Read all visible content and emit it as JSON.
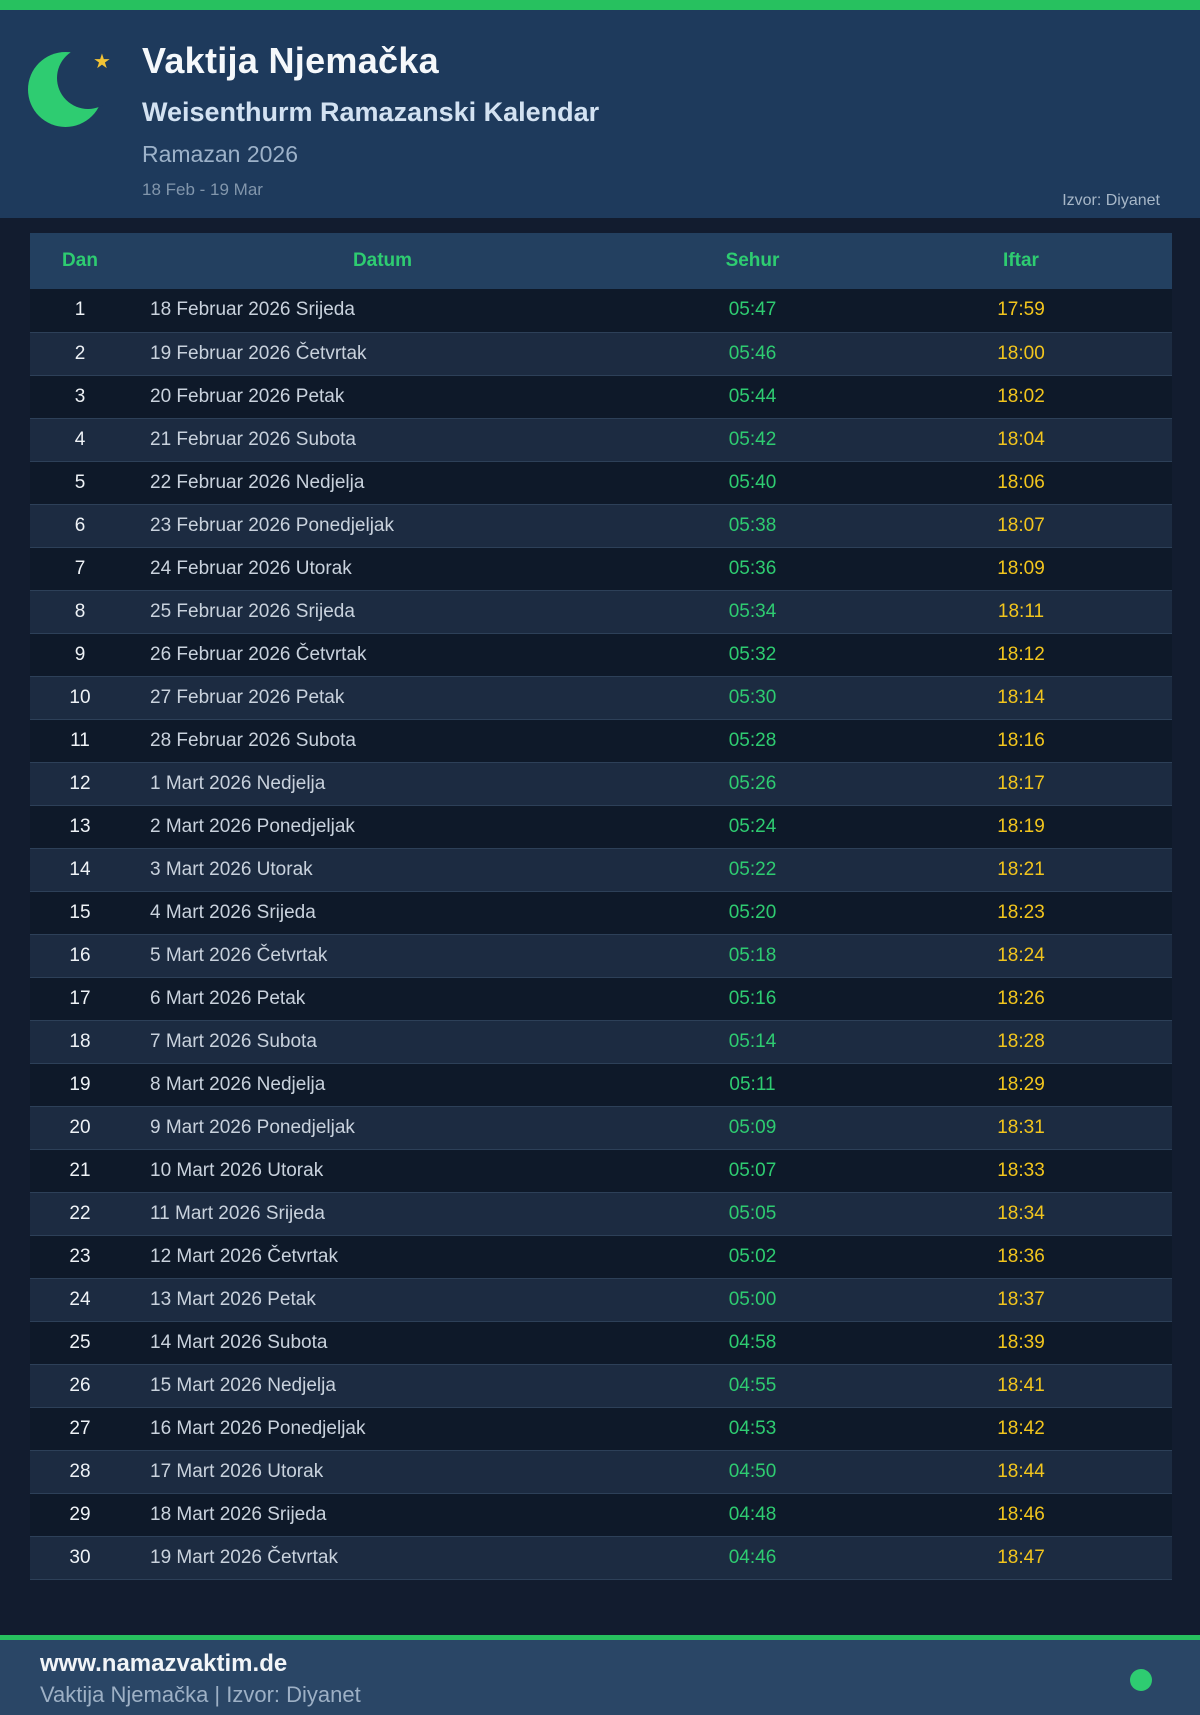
{
  "header": {
    "title": "Vaktija Njemačka",
    "subtitle": "Weisenthurm Ramazanski Kalendar",
    "period": "Ramazan 2026",
    "date_range": "18 Feb - 19 Mar",
    "source": "Izvor: Diyanet",
    "star_glyph": "★"
  },
  "table": {
    "columns": [
      "Dan",
      "Datum",
      "Sehur",
      "Iftar"
    ],
    "rows": [
      [
        "1",
        "18 Februar 2026 Srijeda",
        "05:47",
        "17:59"
      ],
      [
        "2",
        "19 Februar 2026 Četvrtak",
        "05:46",
        "18:00"
      ],
      [
        "3",
        "20 Februar 2026 Petak",
        "05:44",
        "18:02"
      ],
      [
        "4",
        "21 Februar 2026 Subota",
        "05:42",
        "18:04"
      ],
      [
        "5",
        "22 Februar 2026 Nedjelja",
        "05:40",
        "18:06"
      ],
      [
        "6",
        "23 Februar 2026 Ponedjeljak",
        "05:38",
        "18:07"
      ],
      [
        "7",
        "24 Februar 2026 Utorak",
        "05:36",
        "18:09"
      ],
      [
        "8",
        "25 Februar 2026 Srijeda",
        "05:34",
        "18:11"
      ],
      [
        "9",
        "26 Februar 2026 Četvrtak",
        "05:32",
        "18:12"
      ],
      [
        "10",
        "27 Februar 2026 Petak",
        "05:30",
        "18:14"
      ],
      [
        "11",
        "28 Februar 2026 Subota",
        "05:28",
        "18:16"
      ],
      [
        "12",
        "1 Mart 2026 Nedjelja",
        "05:26",
        "18:17"
      ],
      [
        "13",
        "2 Mart 2026 Ponedjeljak",
        "05:24",
        "18:19"
      ],
      [
        "14",
        "3 Mart 2026 Utorak",
        "05:22",
        "18:21"
      ],
      [
        "15",
        "4 Mart 2026 Srijeda",
        "05:20",
        "18:23"
      ],
      [
        "16",
        "5 Mart 2026 Četvrtak",
        "05:18",
        "18:24"
      ],
      [
        "17",
        "6 Mart 2026 Petak",
        "05:16",
        "18:26"
      ],
      [
        "18",
        "7 Mart 2026 Subota",
        "05:14",
        "18:28"
      ],
      [
        "19",
        "8 Mart 2026 Nedjelja",
        "05:11",
        "18:29"
      ],
      [
        "20",
        "9 Mart 2026 Ponedjeljak",
        "05:09",
        "18:31"
      ],
      [
        "21",
        "10 Mart 2026 Utorak",
        "05:07",
        "18:33"
      ],
      [
        "22",
        "11 Mart 2026 Srijeda",
        "05:05",
        "18:34"
      ],
      [
        "23",
        "12 Mart 2026 Četvrtak",
        "05:02",
        "18:36"
      ],
      [
        "24",
        "13 Mart 2026 Petak",
        "05:00",
        "18:37"
      ],
      [
        "25",
        "14 Mart 2026 Subota",
        "04:58",
        "18:39"
      ],
      [
        "26",
        "15 Mart 2026 Nedjelja",
        "04:55",
        "18:41"
      ],
      [
        "27",
        "16 Mart 2026 Ponedjeljak",
        "04:53",
        "18:42"
      ],
      [
        "28",
        "17 Mart 2026 Utorak",
        "04:50",
        "18:44"
      ],
      [
        "29",
        "18 Mart 2026 Srijeda",
        "04:48",
        "18:46"
      ],
      [
        "30",
        "19 Mart 2026 Četvrtak",
        "04:46",
        "18:47"
      ]
    ]
  },
  "footer": {
    "website": "www.namazvaktim.de",
    "tagline": "Vaktija Njemačka | Izvor: Diyanet"
  },
  "colors": {
    "accent_green": "#27c15f",
    "sehur_green": "#2ecc71",
    "iftar_yellow": "#f2c51d",
    "header_bg": "#1e3a5c",
    "footer_bg": "#2a4666",
    "page_bg": "#121c2f"
  }
}
